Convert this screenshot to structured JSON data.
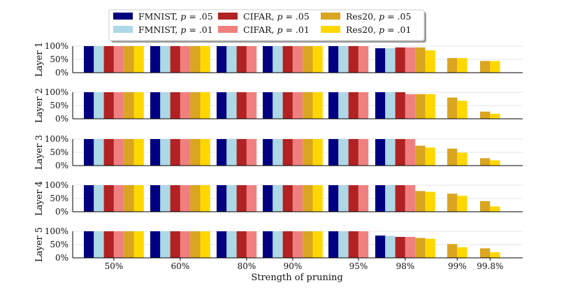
{
  "chart_data": {
    "type": "bar",
    "title": "",
    "xlabel": "Strength of pruning",
    "ylabel_panels": [
      "Layer 1",
      "Layer 2",
      "Layer 3",
      "Layer 4",
      "Layer 5"
    ],
    "categories": [
      "50%",
      "60%",
      "80%",
      "90%",
      "95%",
      "98%",
      "99%",
      "99.8%"
    ],
    "ylim": [
      0,
      100
    ],
    "yticks": [
      "0%",
      "50%",
      "100%"
    ],
    "grid": true,
    "legend_position": "top-center",
    "series": [
      {
        "name": "FMNIST, p = .05",
        "label_prefix": "FMNIST, ",
        "label_var": "p",
        "label_suffix": " = .05",
        "color": "#000080",
        "values": [
          [
            100,
            100,
            100,
            100,
            100,
            92,
            null,
            null
          ],
          [
            100,
            100,
            100,
            100,
            100,
            100,
            null,
            null
          ],
          [
            100,
            100,
            100,
            100,
            100,
            100,
            null,
            null
          ],
          [
            100,
            100,
            100,
            100,
            100,
            100,
            null,
            null
          ],
          [
            100,
            100,
            100,
            100,
            100,
            84,
            null,
            null
          ]
        ]
      },
      {
        "name": "FMNIST, p = .01",
        "label_prefix": "FMNIST, ",
        "label_var": "p",
        "label_suffix": " = .01",
        "color": "#add8e6",
        "values": [
          [
            100,
            100,
            100,
            100,
            100,
            92,
            null,
            null
          ],
          [
            100,
            100,
            100,
            100,
            100,
            100,
            null,
            null
          ],
          [
            100,
            100,
            100,
            100,
            100,
            100,
            null,
            null
          ],
          [
            100,
            100,
            100,
            100,
            100,
            100,
            null,
            null
          ],
          [
            100,
            100,
            100,
            100,
            100,
            83,
            null,
            null
          ]
        ]
      },
      {
        "name": "CIFAR, p = .05",
        "label_prefix": "CIFAR, ",
        "label_var": "p",
        "label_suffix": " = .05",
        "color": "#b22222",
        "values": [
          [
            100,
            100,
            100,
            100,
            100,
            95,
            null,
            null
          ],
          [
            100,
            100,
            100,
            100,
            100,
            100,
            null,
            null
          ],
          [
            100,
            100,
            100,
            100,
            100,
            100,
            null,
            null
          ],
          [
            100,
            100,
            100,
            100,
            100,
            100,
            null,
            null
          ],
          [
            100,
            100,
            100,
            100,
            100,
            79,
            null,
            null
          ]
        ]
      },
      {
        "name": "CIFAR, p = .01",
        "label_prefix": "CIFAR, ",
        "label_var": "p",
        "label_suffix": " = .01",
        "color": "#f08080",
        "values": [
          [
            100,
            100,
            100,
            100,
            100,
            95,
            null,
            null
          ],
          [
            100,
            100,
            100,
            100,
            100,
            93,
            null,
            null
          ],
          [
            100,
            100,
            100,
            100,
            100,
            100,
            null,
            null
          ],
          [
            100,
            100,
            100,
            100,
            100,
            100,
            null,
            null
          ],
          [
            100,
            100,
            100,
            100,
            100,
            79,
            null,
            null
          ]
        ]
      },
      {
        "name": "Res20, p = .05",
        "label_prefix": "Res20, ",
        "label_var": "p",
        "label_suffix": " = .05",
        "color": "#daa520",
        "values": [
          [
            100,
            100,
            null,
            100,
            null,
            95,
            55,
            44
          ],
          [
            100,
            100,
            null,
            100,
            null,
            93,
            80,
            27
          ],
          [
            100,
            100,
            null,
            100,
            null,
            75,
            64,
            28
          ],
          [
            100,
            100,
            null,
            100,
            null,
            78,
            68,
            40
          ],
          [
            100,
            100,
            null,
            100,
            null,
            75,
            52,
            36
          ]
        ]
      },
      {
        "name": "Res20, p = .01",
        "label_prefix": "Res20, ",
        "label_var": "p",
        "label_suffix": " = .01",
        "color": "#ffd700",
        "values": [
          [
            100,
            100,
            null,
            100,
            null,
            84,
            55,
            44
          ],
          [
            100,
            100,
            null,
            100,
            null,
            93,
            68,
            19
          ],
          [
            100,
            100,
            null,
            100,
            null,
            68,
            49,
            20
          ],
          [
            100,
            100,
            null,
            100,
            null,
            75,
            60,
            20
          ],
          [
            100,
            100,
            null,
            100,
            null,
            72,
            40,
            21
          ]
        ]
      }
    ]
  }
}
